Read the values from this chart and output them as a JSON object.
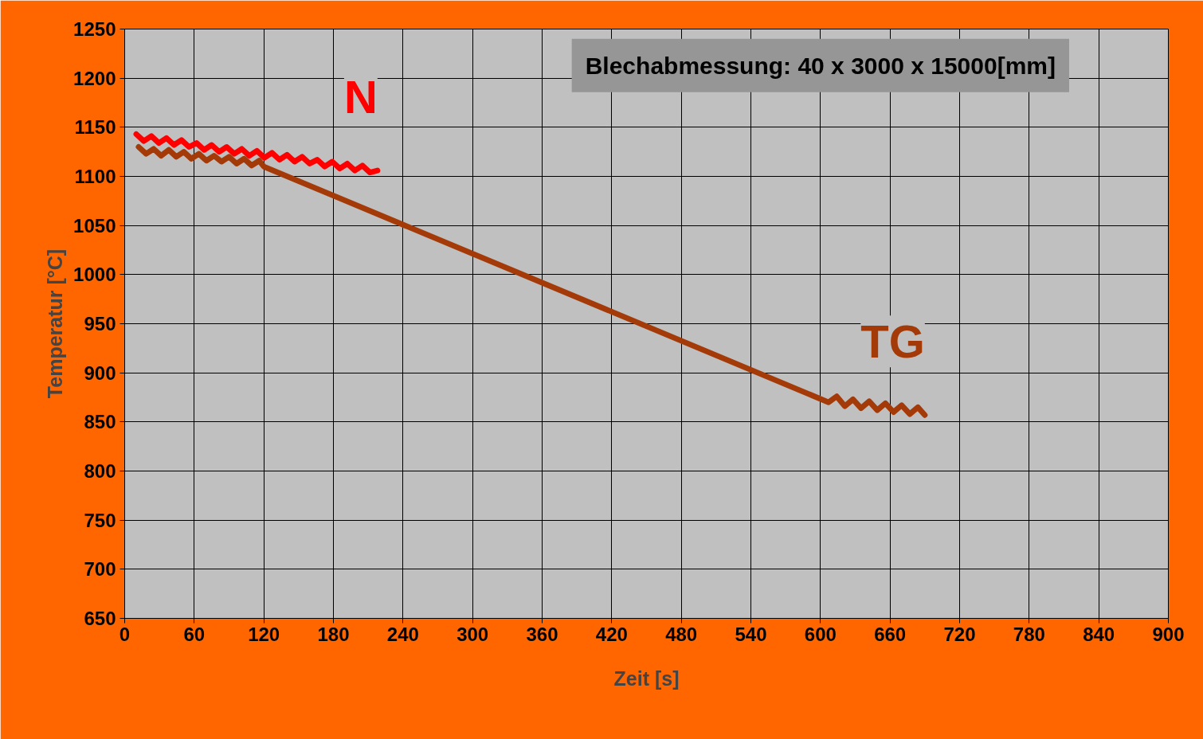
{
  "chart_data": {
    "type": "line",
    "xlabel": "Zeit [s]",
    "ylabel": "Temperatur [°C]",
    "annotations": [
      "Blechabmessung: 40 x 3000 x 15000[mm]"
    ],
    "xlim": [
      0,
      900
    ],
    "ylim": [
      650,
      1250
    ],
    "xticks": [
      0,
      60,
      120,
      180,
      240,
      300,
      360,
      420,
      480,
      540,
      600,
      660,
      720,
      780,
      840,
      900
    ],
    "yticks": [
      650,
      700,
      750,
      800,
      850,
      900,
      950,
      1000,
      1050,
      1100,
      1150,
      1200,
      1250
    ],
    "grid": true,
    "marker": "none",
    "line_style": "solid",
    "series": [
      {
        "name": "N",
        "color": "#ff0000",
        "x": [
          10,
          16.5,
          23,
          29.5,
          36,
          42.5,
          49,
          55.5,
          62,
          68.5,
          75,
          81.5,
          88,
          94.5,
          101,
          107.5,
          114,
          120.5,
          127,
          133.5,
          140,
          146.5,
          153,
          159.5,
          166,
          172.5,
          179,
          185.5,
          192,
          198.5,
          205,
          211.5,
          218
        ],
        "values": [
          1143,
          1136,
          1141,
          1134,
          1139,
          1132,
          1137,
          1130,
          1134,
          1127,
          1132,
          1125,
          1130,
          1123,
          1128,
          1121,
          1126,
          1119,
          1124,
          1117,
          1122,
          1115,
          1120,
          1113,
          1117,
          1110,
          1115,
          1108,
          1113,
          1106,
          1111,
          1104,
          1106
        ]
      },
      {
        "name": "TG",
        "color": "#a33a08",
        "x": [
          12,
          18.5,
          25,
          31.5,
          38,
          44.5,
          51,
          57.5,
          64,
          70.5,
          77,
          83.5,
          90,
          96.5,
          103,
          109.5,
          116,
          120,
          607,
          614,
          621,
          628,
          635,
          642,
          649,
          656,
          663,
          670,
          677,
          684,
          690
        ],
        "values": [
          1130,
          1123,
          1128,
          1121,
          1127,
          1120,
          1125,
          1118,
          1123,
          1116,
          1121,
          1115,
          1120,
          1113,
          1118,
          1111,
          1116,
          1110,
          870,
          876,
          866,
          873,
          864,
          871,
          862,
          869,
          860,
          867,
          858,
          865,
          857
        ]
      }
    ]
  }
}
